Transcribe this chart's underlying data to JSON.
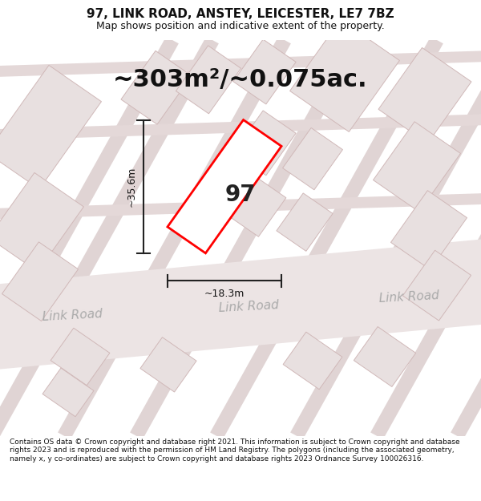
{
  "title": "97, LINK ROAD, ANSTEY, LEICESTER, LE7 7BZ",
  "subtitle": "Map shows position and indicative extent of the property.",
  "area_text": "~303m²/~0.075ac.",
  "number_label": "97",
  "dim_width": "~18.3m",
  "dim_height": "~35.6m",
  "footer": "Contains OS data © Crown copyright and database right 2021. This information is subject to Crown copyright and database rights 2023 and is reproduced with the permission of HM Land Registry. The polygons (including the associated geometry, namely x, y co-ordinates) are subject to Crown copyright and database rights 2023 Ordnance Survey 100026316.",
  "bg_color": "#ffffff",
  "map_bg": "#f5eeee",
  "building_fill": "#e8e0e0",
  "building_edge": "#d0b8b8",
  "road_fill": "#ede5e5",
  "highlight_edge": "#ff0000",
  "highlight_fill": "#ffffff",
  "dim_color": "#222222",
  "road_label_color": "#aaaaaa",
  "title_fontsize": 11,
  "subtitle_fontsize": 9,
  "area_fontsize": 22,
  "number_fontsize": 20,
  "road_label_fontsize": 11,
  "dim_fontsize": 9,
  "footer_fontsize": 6.5
}
